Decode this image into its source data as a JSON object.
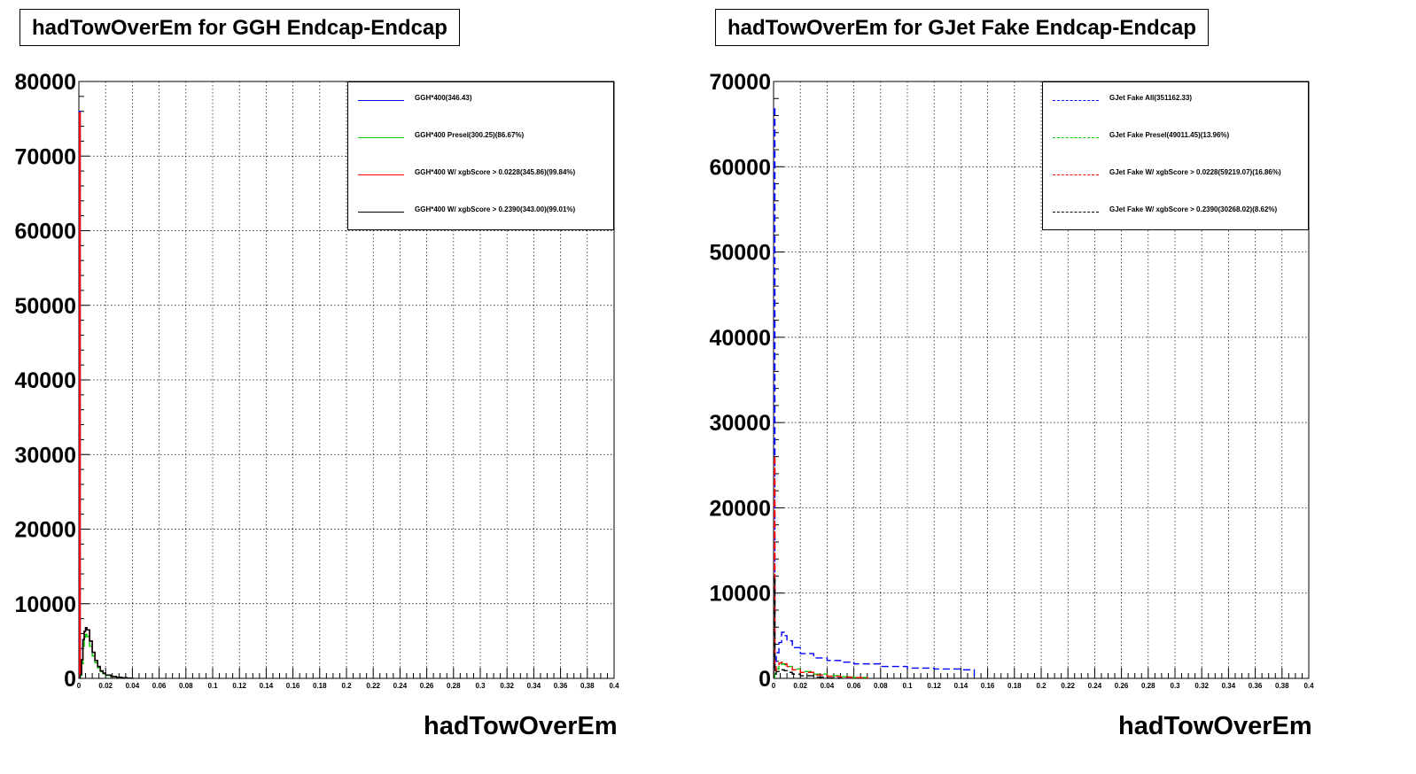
{
  "chart_data": [
    {
      "type": "line",
      "title": "hadTowOverEm for GGH Endcap-Endcap",
      "xlabel": "hadTowOverEm",
      "ylabel": "",
      "xlim": [
        0,
        0.4
      ],
      "ylim": [
        0,
        80000
      ],
      "x_ticks": [
        "0",
        "0.02",
        "0.04",
        "0.06",
        "0.08",
        "0.1",
        "0.12",
        "0.14",
        "0.16",
        "0.18",
        "0.2",
        "0.22",
        "0.24",
        "0.26",
        "0.28",
        "0.3",
        "0.32",
        "0.34",
        "0.36",
        "0.38",
        "0.4"
      ],
      "y_ticks": [
        "0",
        "10000",
        "20000",
        "30000",
        "40000",
        "50000",
        "60000",
        "70000",
        "80000"
      ],
      "y_tick_labels_shown": [
        "0",
        "10000",
        "20000",
        "30000",
        "40000",
        "50000",
        "60000",
        "70000",
        "80000"
      ],
      "grid": true,
      "legend_position": "top-right",
      "series": [
        {
          "name": "GGH*400(346.43)",
          "color": "#0000ff",
          "dashed": false,
          "x": [
            0,
            0.001,
            0.002,
            0.003,
            0.004,
            0.005,
            0.006,
            0.008,
            0.01,
            0.012,
            0.014,
            0.016,
            0.018,
            0.02,
            0.024,
            0.028,
            0.032,
            0.036,
            0.04
          ],
          "values": [
            76000,
            500,
            2500,
            5200,
            6300,
            6800,
            6500,
            5000,
            3500,
            2400,
            1600,
            1000,
            700,
            450,
            250,
            150,
            80,
            40,
            0
          ]
        },
        {
          "name": "GGH*400 Presel(300.25)(86.67%)",
          "color": "#00cc00",
          "dashed": false,
          "x": [
            0,
            0.001,
            0.002,
            0.003,
            0.004,
            0.005,
            0.006,
            0.008,
            0.01,
            0.012,
            0.014,
            0.016,
            0.018,
            0.02,
            0.024,
            0.028,
            0.032,
            0.036,
            0.04
          ],
          "values": [
            0,
            400,
            2000,
            4300,
            5500,
            5900,
            5600,
            4300,
            3000,
            2100,
            1400,
            900,
            600,
            400,
            220,
            130,
            70,
            30,
            0
          ]
        },
        {
          "name": "GGH*400 W/ xgbScore > 0.0228(345.86)(99.84%)",
          "color": "#ff0000",
          "dashed": false,
          "x": [
            0,
            0.001,
            0.002,
            0.003,
            0.004,
            0.005,
            0.006,
            0.008,
            0.01,
            0.012,
            0.014,
            0.016,
            0.018,
            0.02,
            0.024,
            0.028,
            0.032,
            0.036,
            0.04
          ],
          "values": [
            75800,
            500,
            2500,
            5200,
            6300,
            6800,
            6500,
            5000,
            3500,
            2400,
            1600,
            1000,
            700,
            450,
            250,
            150,
            80,
            40,
            0
          ]
        },
        {
          "name": "GGH*400 W/ xgbScore > 0.2390(343.00)(99.01%)",
          "color": "#000000",
          "dashed": false,
          "x": [
            0,
            0.001,
            0.002,
            0.003,
            0.004,
            0.005,
            0.006,
            0.008,
            0.01,
            0.012,
            0.014,
            0.016,
            0.018,
            0.02,
            0.024,
            0.028,
            0.032,
            0.036,
            0.04
          ],
          "values": [
            0,
            500,
            2500,
            5200,
            6300,
            6800,
            6500,
            5000,
            3500,
            2400,
            1600,
            1000,
            700,
            450,
            250,
            150,
            80,
            40,
            0
          ]
        }
      ]
    },
    {
      "type": "line",
      "title": "hadTowOverEm for GJet Fake Endcap-Endcap",
      "xlabel": "hadTowOverEm",
      "ylabel": "",
      "xlim": [
        0,
        0.4
      ],
      "ylim": [
        0,
        70000
      ],
      "x_ticks": [
        "0",
        "0.02",
        "0.04",
        "0.06",
        "0.08",
        "0.1",
        "0.12",
        "0.14",
        "0.16",
        "0.18",
        "0.2",
        "0.22",
        "0.24",
        "0.26",
        "0.28",
        "0.3",
        "0.32",
        "0.34",
        "0.36",
        "0.38",
        "0.4"
      ],
      "y_ticks": [
        "0",
        "10000",
        "20000",
        "30000",
        "40000",
        "50000",
        "60000",
        "70000"
      ],
      "y_tick_labels_shown": [
        "0",
        "10000",
        "20000",
        "30000",
        "40000",
        "50000",
        "60000",
        "70000"
      ],
      "grid": true,
      "legend_position": "top-right",
      "series": [
        {
          "name": "GJet Fake All(351162.33)",
          "color": "#0000ff",
          "dashed": true,
          "x": [
            0,
            0.001,
            0.002,
            0.004,
            0.006,
            0.008,
            0.01,
            0.014,
            0.02,
            0.03,
            0.04,
            0.05,
            0.06,
            0.08,
            0.1,
            0.12,
            0.14,
            0.15
          ],
          "values": [
            67000,
            2000,
            3000,
            4200,
            5400,
            5000,
            4400,
            3600,
            2900,
            2400,
            2100,
            1900,
            1700,
            1400,
            1200,
            1100,
            1000,
            0
          ]
        },
        {
          "name": "GJet Fake Presel(49011.45)(13.96%)",
          "color": "#00cc00",
          "dashed": true,
          "x": [
            0,
            0.001,
            0.002,
            0.004,
            0.006,
            0.008,
            0.01,
            0.014,
            0.02,
            0.03,
            0.04,
            0.05,
            0.06,
            0.07
          ],
          "values": [
            0,
            600,
            1100,
            1500,
            1700,
            1600,
            1400,
            1100,
            800,
            500,
            300,
            200,
            100,
            0
          ]
        },
        {
          "name": "GJet Fake W/ xgbScore > 0.0228(59219.07)(16.86%)",
          "color": "#ff0000",
          "dashed": true,
          "x": [
            0,
            0.001,
            0.002,
            0.004,
            0.006,
            0.008,
            0.01,
            0.014,
            0.02,
            0.03,
            0.04,
            0.05,
            0.06,
            0.07
          ],
          "values": [
            26000,
            900,
            1400,
            1800,
            1900,
            1700,
            1400,
            1000,
            700,
            400,
            250,
            150,
            80,
            0
          ]
        },
        {
          "name": "GJet Fake W/ xgbScore > 0.2390(30268.02)(8.62%)",
          "color": "#000000",
          "dashed": true,
          "x": [
            0,
            0.001,
            0.002,
            0.004,
            0.006,
            0.008,
            0.01,
            0.014,
            0.02,
            0.03,
            0.04,
            0.05
          ],
          "values": [
            12000,
            500,
            800,
            1000,
            1000,
            900,
            700,
            500,
            300,
            150,
            60,
            0
          ]
        }
      ]
    }
  ]
}
